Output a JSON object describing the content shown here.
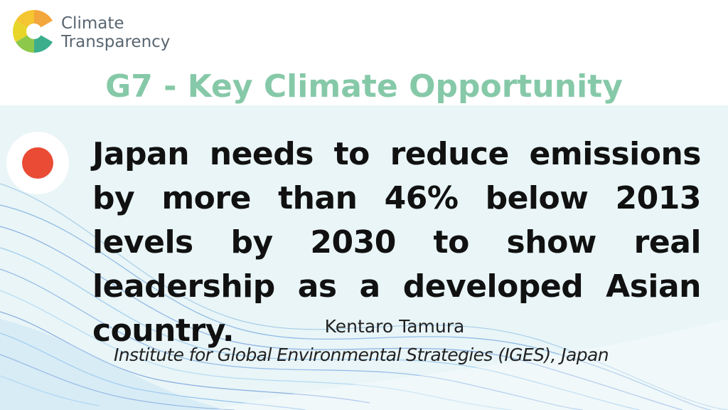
{
  "logo": {
    "line1": "Climate",
    "line2": "Transparency"
  },
  "title": "G7 - Key Climate Opportunity",
  "quote": "Japan needs to reduce emissions by more than 46% below 2013 levels by 2030 to show real leadership as a developed Asian country.",
  "author": "Kentaro Tamura",
  "affiliation": "Institute for Global Environmental Strategies (IGES), Japan"
}
